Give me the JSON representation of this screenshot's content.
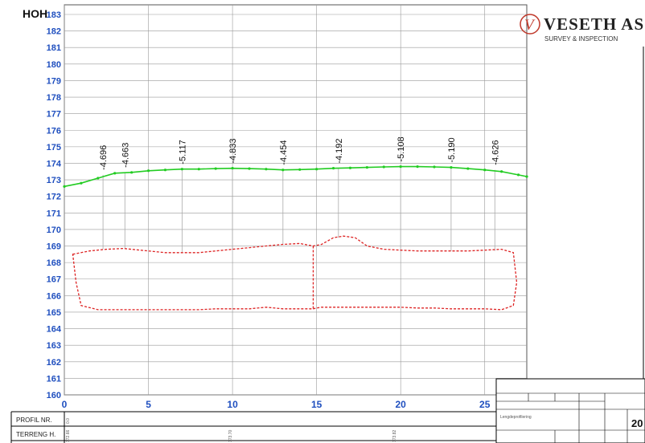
{
  "logo": {
    "name": "VESETH AS",
    "sub": "SURVEY & INSPECTION",
    "letter": "V"
  },
  "chart_data": {
    "type": "line",
    "ylabel": "HOH",
    "ylim": [
      160,
      183
    ],
    "yticks": [
      160,
      161,
      162,
      163,
      164,
      165,
      166,
      167,
      168,
      169,
      170,
      171,
      172,
      173,
      174,
      175,
      176,
      177,
      178,
      179,
      180,
      181,
      182,
      183
    ],
    "xlim": [
      0,
      27.5
    ],
    "xticks": [
      0,
      5,
      10,
      15,
      20,
      25
    ],
    "grid": true,
    "series": [
      {
        "color": "#22cc22",
        "x": [
          0,
          1,
          2,
          3,
          4,
          5,
          6,
          7,
          8,
          9,
          10,
          11,
          12,
          13,
          14,
          15,
          16,
          17,
          18,
          19,
          20,
          21,
          22,
          23,
          24,
          25,
          26,
          27,
          27.5
        ],
        "values": [
          172.6,
          172.8,
          173.1,
          173.4,
          173.45,
          173.55,
          173.6,
          173.65,
          173.65,
          173.68,
          173.7,
          173.68,
          173.65,
          173.6,
          173.62,
          173.65,
          173.7,
          173.72,
          173.75,
          173.78,
          173.8,
          173.8,
          173.78,
          173.75,
          173.68,
          173.6,
          173.5,
          173.3,
          173.2
        ]
      },
      {
        "color": "#dd2222",
        "x": [
          0.5,
          1.5,
          2.5,
          3.5,
          5,
          6,
          7,
          8,
          9,
          10,
          11,
          12,
          13,
          14,
          14.8,
          15.3,
          16,
          16.6,
          17.3,
          18,
          19,
          20,
          21,
          22,
          23,
          24,
          25,
          26,
          26.7,
          26.9,
          26.7,
          26,
          25,
          24,
          23,
          22,
          21,
          20,
          19,
          18,
          17,
          16,
          15.3,
          15,
          14.8,
          14,
          13,
          12,
          11,
          10,
          9,
          8,
          7,
          6,
          5,
          4,
          3,
          2,
          1,
          0.7,
          0.5
        ],
        "values": [
          168.5,
          168.7,
          168.8,
          168.85,
          168.7,
          168.6,
          168.6,
          168.6,
          168.7,
          168.8,
          168.9,
          169.0,
          169.1,
          169.15,
          169.0,
          169.1,
          169.5,
          169.6,
          169.5,
          169.0,
          168.8,
          168.75,
          168.7,
          168.7,
          168.7,
          168.7,
          168.75,
          168.8,
          168.6,
          166.8,
          165.4,
          165.15,
          165.2,
          165.2,
          165.2,
          165.25,
          165.25,
          165.3,
          165.3,
          165.3,
          165.3,
          165.3,
          165.3,
          165.25,
          165.2,
          165.2,
          165.2,
          165.3,
          165.2,
          165.2,
          165.2,
          165.15,
          165.15,
          165.15,
          165.15,
          165.15,
          165.15,
          165.15,
          165.4,
          166.8,
          168.5
        ]
      }
    ],
    "verticals": [
      {
        "x": 2.3,
        "yTop": 173.3,
        "yBot": 168.8,
        "label": "-4.696"
      },
      {
        "x": 3.6,
        "yTop": 173.45,
        "yBot": 168.85,
        "label": "-4.663"
      },
      {
        "x": 7.0,
        "yTop": 173.65,
        "yBot": 168.6,
        "label": "-5.117"
      },
      {
        "x": 10.0,
        "yTop": 173.7,
        "yBot": 168.8,
        "label": "-4.833"
      },
      {
        "x": 13.0,
        "yTop": 173.6,
        "yBot": 169.1,
        "label": "-4.454"
      },
      {
        "x": 16.3,
        "yTop": 173.7,
        "yBot": 169.5,
        "label": "-4.192"
      },
      {
        "x": 20.0,
        "yTop": 173.8,
        "yBot": 168.75,
        "label": "-5.108"
      },
      {
        "x": 23.0,
        "yTop": 173.75,
        "yBot": 168.7,
        "label": "-5.190"
      },
      {
        "x": 25.6,
        "yTop": 173.6,
        "yBot": 168.7,
        "label": "-4.626"
      }
    ],
    "partition": 14.8
  },
  "footer": {
    "profil_label": "PROFIL NR.",
    "profil_value": "0.0",
    "terreng_label": "TERRENG H.",
    "terreng_value": "172.66",
    "terreng_value_2": "173.70",
    "terreng_value_3": "173.82"
  },
  "title_block": {
    "drawing_title": "Lengdeprofilering",
    "number": "20"
  }
}
